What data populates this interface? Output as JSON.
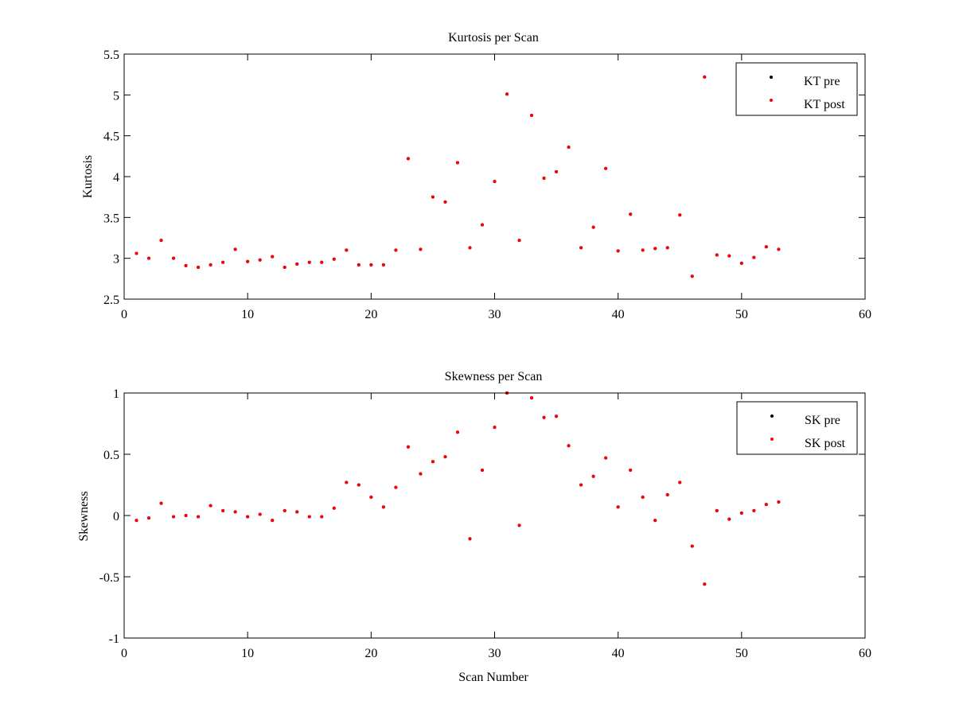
{
  "chart_data": [
    {
      "type": "scatter",
      "title": "Kurtosis per Scan",
      "xlabel": "",
      "ylabel": "Kurtosis",
      "xlim": [
        0,
        60
      ],
      "ylim": [
        2.5,
        5.5
      ],
      "xticks": [
        0,
        10,
        20,
        30,
        40,
        50,
        60
      ],
      "yticks": [
        2.5,
        3,
        3.5,
        4,
        4.5,
        5,
        5.5
      ],
      "xtick_labels": [
        "0",
        "10",
        "20",
        "30",
        "40",
        "50",
        "60"
      ],
      "ytick_labels": [
        "2.5",
        "3",
        "3.5",
        "4",
        "4.5",
        "5",
        "5.5"
      ],
      "grid": false,
      "legend_position": "top-right",
      "series": [
        {
          "name": "KT pre",
          "color": "#000000",
          "x": [
            1,
            2,
            3,
            4,
            5,
            6,
            7,
            8,
            9,
            10,
            11,
            12,
            13,
            14,
            15,
            16,
            17,
            18,
            19,
            20,
            21,
            22,
            23,
            24,
            25,
            26,
            27,
            28,
            29,
            30,
            31,
            32,
            33,
            34,
            35,
            36,
            37,
            38,
            39,
            40,
            41,
            42,
            43,
            44,
            45,
            46,
            47,
            48,
            49,
            50,
            51,
            52,
            53
          ],
          "y": [
            3.06,
            3.0,
            3.22,
            3.0,
            2.91,
            2.89,
            2.92,
            2.95,
            3.11,
            2.96,
            2.98,
            3.02,
            2.89,
            2.93,
            2.95,
            2.95,
            2.99,
            3.1,
            2.92,
            2.92,
            2.92,
            3.1,
            4.22,
            3.11,
            3.75,
            3.69,
            4.17,
            3.13,
            3.41,
            3.94,
            5.01,
            3.22,
            4.75,
            3.98,
            4.06,
            4.36,
            3.13,
            3.38,
            4.1,
            3.09,
            3.54,
            3.1,
            3.12,
            3.13,
            3.53,
            2.78,
            5.22,
            3.04,
            3.03,
            2.94,
            3.01,
            3.14,
            3.11
          ]
        },
        {
          "name": "KT post",
          "color": "#ff0000",
          "x": [
            1,
            2,
            3,
            4,
            5,
            6,
            7,
            8,
            9,
            10,
            11,
            12,
            13,
            14,
            15,
            16,
            17,
            18,
            19,
            20,
            21,
            22,
            23,
            24,
            25,
            26,
            27,
            28,
            29,
            30,
            31,
            32,
            33,
            34,
            35,
            36,
            37,
            38,
            39,
            40,
            41,
            42,
            43,
            44,
            45,
            46,
            47,
            48,
            49,
            50,
            51,
            52,
            53
          ],
          "y": [
            3.06,
            3.0,
            3.22,
            3.0,
            2.91,
            2.89,
            2.92,
            2.95,
            3.11,
            2.96,
            2.98,
            3.02,
            2.89,
            2.93,
            2.95,
            2.95,
            2.99,
            3.1,
            2.92,
            2.92,
            2.92,
            3.1,
            4.22,
            3.11,
            3.75,
            3.69,
            4.17,
            3.13,
            3.41,
            3.94,
            5.01,
            3.22,
            4.75,
            3.98,
            4.06,
            4.36,
            3.13,
            3.38,
            4.1,
            3.09,
            3.54,
            3.1,
            3.12,
            3.13,
            3.53,
            2.78,
            5.22,
            3.04,
            3.03,
            2.94,
            3.01,
            3.14,
            3.11
          ]
        }
      ]
    },
    {
      "type": "scatter",
      "title": "Skewness per Scan",
      "xlabel": "Scan Number",
      "ylabel": "Skewness",
      "xlim": [
        0,
        60
      ],
      "ylim": [
        -1,
        1
      ],
      "xticks": [
        0,
        10,
        20,
        30,
        40,
        50,
        60
      ],
      "yticks": [
        -1,
        -0.5,
        0,
        0.5,
        1
      ],
      "xtick_labels": [
        "0",
        "10",
        "20",
        "30",
        "40",
        "50",
        "60"
      ],
      "ytick_labels": [
        "-1",
        "-0.5",
        "0",
        "0.5",
        "1"
      ],
      "grid": false,
      "legend_position": "top-right",
      "series": [
        {
          "name": "SK pre",
          "color": "#000000",
          "x": [
            1,
            2,
            3,
            4,
            5,
            6,
            7,
            8,
            9,
            10,
            11,
            12,
            13,
            14,
            15,
            16,
            17,
            18,
            19,
            20,
            21,
            22,
            23,
            24,
            25,
            26,
            27,
            28,
            29,
            30,
            31,
            32,
            33,
            34,
            35,
            36,
            37,
            38,
            39,
            40,
            41,
            42,
            43,
            44,
            45,
            46,
            47,
            48,
            49,
            50,
            51,
            52,
            53
          ],
          "y": [
            -0.04,
            -0.02,
            0.1,
            -0.01,
            0.0,
            -0.01,
            0.08,
            0.04,
            0.03,
            -0.01,
            0.01,
            -0.04,
            0.04,
            0.03,
            -0.01,
            -0.01,
            0.06,
            0.27,
            0.25,
            0.15,
            0.07,
            0.23,
            0.56,
            0.34,
            0.44,
            0.48,
            0.68,
            -0.19,
            0.37,
            0.72,
            1.0,
            -0.08,
            0.96,
            0.8,
            0.81,
            0.57,
            0.25,
            0.32,
            0.47,
            0.07,
            0.37,
            0.15,
            -0.04,
            0.17,
            0.27,
            -0.25,
            -0.56,
            0.04,
            -0.03,
            0.02,
            0.04,
            0.09,
            0.11
          ]
        },
        {
          "name": "SK post",
          "color": "#ff0000",
          "x": [
            1,
            2,
            3,
            4,
            5,
            6,
            7,
            8,
            9,
            10,
            11,
            12,
            13,
            14,
            15,
            16,
            17,
            18,
            19,
            20,
            21,
            22,
            23,
            24,
            25,
            26,
            27,
            28,
            29,
            30,
            31,
            32,
            33,
            34,
            35,
            36,
            37,
            38,
            39,
            40,
            41,
            42,
            43,
            44,
            45,
            46,
            47,
            48,
            49,
            50,
            51,
            52,
            53
          ],
          "y": [
            -0.04,
            -0.02,
            0.1,
            -0.01,
            0.0,
            -0.01,
            0.08,
            0.04,
            0.03,
            -0.01,
            0.01,
            -0.04,
            0.04,
            0.03,
            -0.01,
            -0.01,
            0.06,
            0.27,
            0.25,
            0.15,
            0.07,
            0.23,
            0.56,
            0.34,
            0.44,
            0.48,
            0.68,
            -0.19,
            0.37,
            0.72,
            1.0,
            -0.08,
            0.96,
            0.8,
            0.81,
            0.57,
            0.25,
            0.32,
            0.47,
            0.07,
            0.37,
            0.15,
            -0.04,
            0.17,
            0.27,
            -0.25,
            -0.56,
            0.04,
            -0.03,
            0.02,
            0.04,
            0.09,
            0.11
          ]
        }
      ]
    }
  ]
}
